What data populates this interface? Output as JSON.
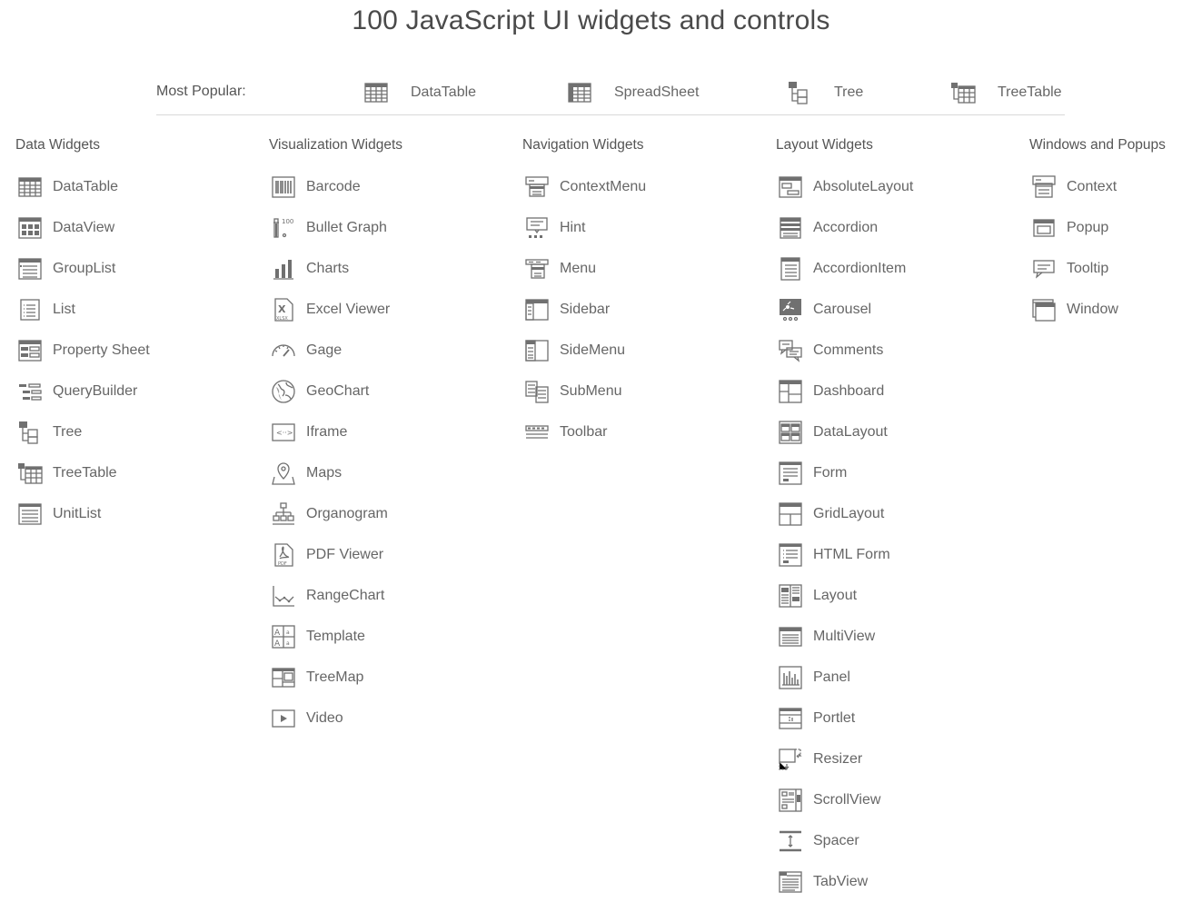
{
  "title": "100 JavaScript UI widgets and controls",
  "most_popular": {
    "label": "Most Popular:",
    "items": [
      {
        "label": "DataTable",
        "icon": "datatable-icon"
      },
      {
        "label": "SpreadSheet",
        "icon": "spreadsheet-icon"
      },
      {
        "label": "Tree",
        "icon": "tree-icon"
      },
      {
        "label": "TreeTable",
        "icon": "treetable-icon"
      }
    ]
  },
  "columns": [
    {
      "title": "Data Widgets",
      "items": [
        {
          "label": "DataTable",
          "icon": "datatable-icon"
        },
        {
          "label": "DataView",
          "icon": "dataview-icon"
        },
        {
          "label": "GroupList",
          "icon": "grouplist-icon"
        },
        {
          "label": "List",
          "icon": "list-icon"
        },
        {
          "label": "Property Sheet",
          "icon": "property-sheet-icon"
        },
        {
          "label": "QueryBuilder",
          "icon": "querybuilder-icon"
        },
        {
          "label": "Tree",
          "icon": "tree-icon"
        },
        {
          "label": "TreeTable",
          "icon": "treetable-icon"
        },
        {
          "label": "UnitList",
          "icon": "unitlist-icon"
        }
      ]
    },
    {
      "title": "Visualization Widgets",
      "items": [
        {
          "label": "Barcode",
          "icon": "barcode-icon"
        },
        {
          "label": "Bullet Graph",
          "icon": "bullet-graph-icon"
        },
        {
          "label": "Charts",
          "icon": "charts-icon"
        },
        {
          "label": "Excel Viewer",
          "icon": "excel-viewer-icon"
        },
        {
          "label": "Gage",
          "icon": "gage-icon"
        },
        {
          "label": "GeoChart",
          "icon": "geochart-icon"
        },
        {
          "label": "Iframe",
          "icon": "iframe-icon"
        },
        {
          "label": "Maps",
          "icon": "maps-icon"
        },
        {
          "label": "Organogram",
          "icon": "organogram-icon"
        },
        {
          "label": "PDF Viewer",
          "icon": "pdf-viewer-icon"
        },
        {
          "label": "RangeChart",
          "icon": "rangechart-icon"
        },
        {
          "label": "Template",
          "icon": "template-icon"
        },
        {
          "label": "TreeMap",
          "icon": "treemap-icon"
        },
        {
          "label": "Video",
          "icon": "video-icon"
        }
      ]
    },
    {
      "title": "Navigation Widgets",
      "items": [
        {
          "label": "ContextMenu",
          "icon": "contextmenu-icon"
        },
        {
          "label": "Hint",
          "icon": "hint-icon"
        },
        {
          "label": "Menu",
          "icon": "menu-icon"
        },
        {
          "label": "Sidebar",
          "icon": "sidebar-icon"
        },
        {
          "label": "SideMenu",
          "icon": "sidemenu-icon"
        },
        {
          "label": "SubMenu",
          "icon": "submenu-icon"
        },
        {
          "label": "Toolbar",
          "icon": "toolbar-icon"
        }
      ]
    },
    {
      "title": "Layout Widgets",
      "items": [
        {
          "label": "AbsoluteLayout",
          "icon": "absolutelayout-icon"
        },
        {
          "label": "Accordion",
          "icon": "accordion-icon"
        },
        {
          "label": "AccordionItem",
          "icon": "accordionitem-icon"
        },
        {
          "label": "Carousel",
          "icon": "carousel-icon"
        },
        {
          "label": "Comments",
          "icon": "comments-icon"
        },
        {
          "label": "Dashboard",
          "icon": "dashboard-icon"
        },
        {
          "label": "DataLayout",
          "icon": "datalayout-icon"
        },
        {
          "label": "Form",
          "icon": "form-icon"
        },
        {
          "label": "GridLayout",
          "icon": "gridlayout-icon"
        },
        {
          "label": "HTML Form",
          "icon": "html-form-icon"
        },
        {
          "label": "Layout",
          "icon": "layout-icon"
        },
        {
          "label": "MultiView",
          "icon": "multiview-icon"
        },
        {
          "label": "Panel",
          "icon": "panel-icon"
        },
        {
          "label": "Portlet",
          "icon": "portlet-icon"
        },
        {
          "label": "Resizer",
          "icon": "resizer-icon"
        },
        {
          "label": "ScrollView",
          "icon": "scrollview-icon"
        },
        {
          "label": "Spacer",
          "icon": "spacer-icon"
        },
        {
          "label": "TabView",
          "icon": "tabview-icon"
        }
      ]
    },
    {
      "title": "Windows and Popups",
      "items": [
        {
          "label": "Context",
          "icon": "context-icon"
        },
        {
          "label": "Popup",
          "icon": "popup-icon"
        },
        {
          "label": "Tooltip",
          "icon": "tooltip-icon"
        },
        {
          "label": "Window",
          "icon": "window-icon"
        }
      ]
    }
  ],
  "colors": {
    "icon": "#707070",
    "text": "#666666",
    "rule": "#d9d9d9"
  }
}
